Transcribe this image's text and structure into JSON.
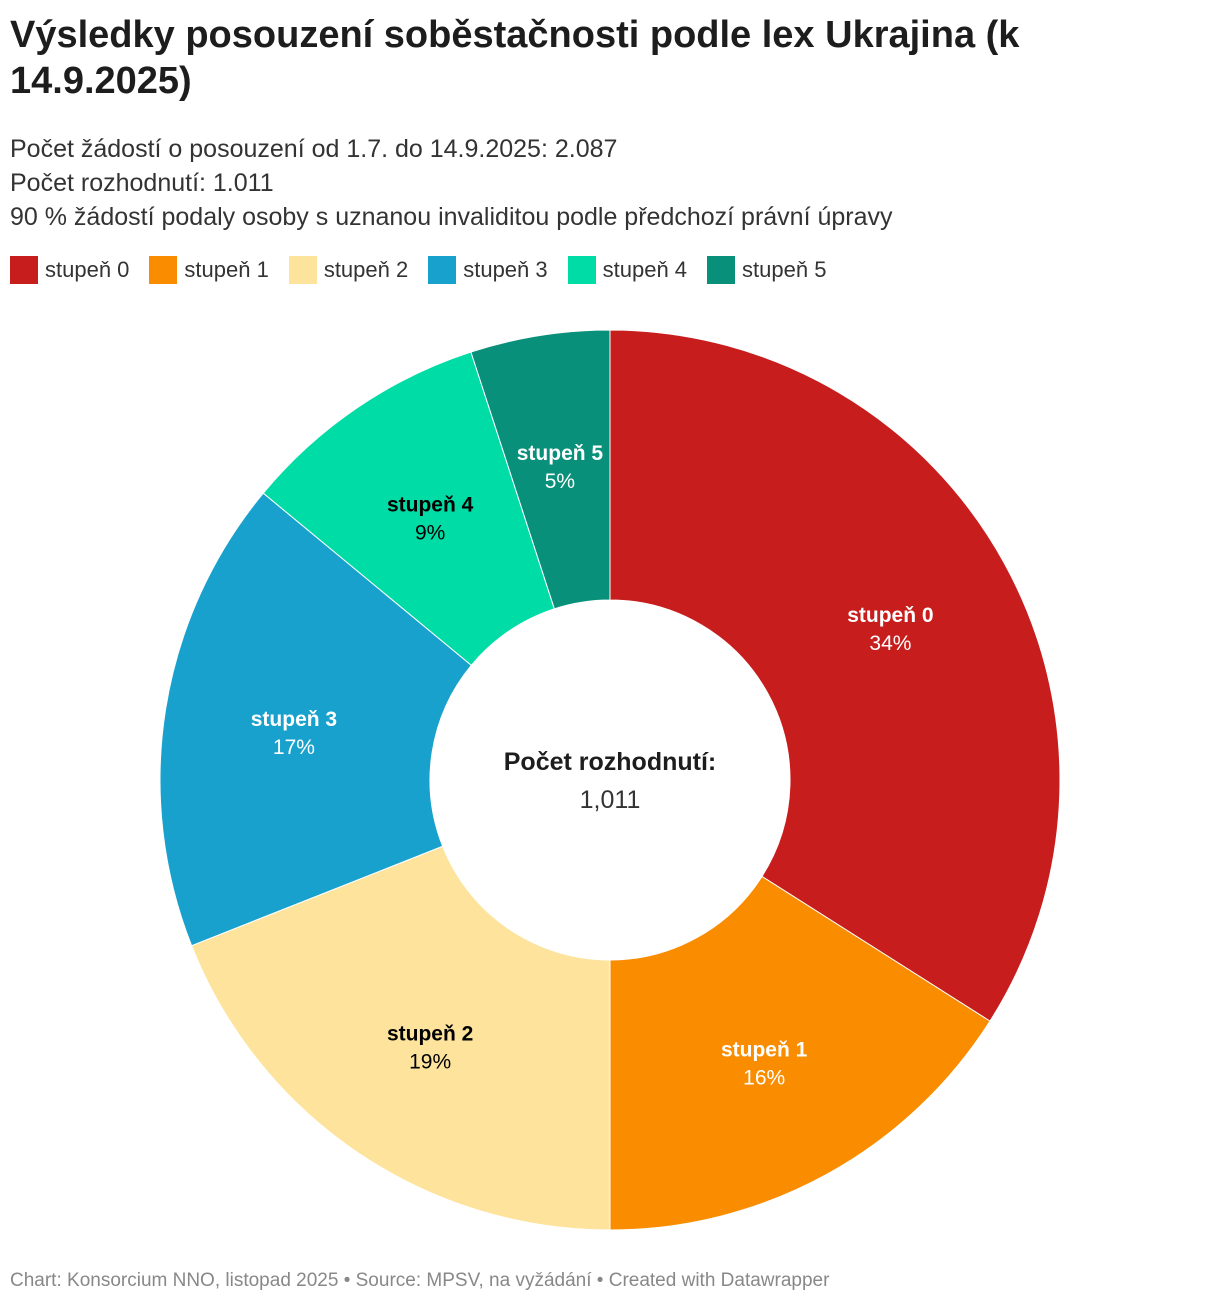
{
  "title": "Výsledky posouzení soběstačnosti podle lex Ukrajina (k 14.9.2025)",
  "description": [
    "Počet žádostí o posouzení od 1.7. do 14.9.2025: 2.087",
    "Počet rozhodnutí: 1.011",
    "90 % žádostí podaly osoby s uznanou invaliditou podle předchozí právní úpravy"
  ],
  "legend": [
    {
      "label": "stupeň 0",
      "color": "#c71e1d"
    },
    {
      "label": "stupeň 1",
      "color": "#fa8c00"
    },
    {
      "label": "stupeň 2",
      "color": "#fde39c"
    },
    {
      "label": "stupeň 3",
      "color": "#18a1cd"
    },
    {
      "label": "stupeň 4",
      "color": "#00dca6"
    },
    {
      "label": "stupeň 5",
      "color": "#09907a"
    }
  ],
  "chart_data": {
    "type": "pie",
    "donut": true,
    "categories": [
      "stupeň 0",
      "stupeň 1",
      "stupeň 2",
      "stupeň 3",
      "stupeň 4",
      "stupeň 5"
    ],
    "values": [
      34,
      16,
      19,
      17,
      9,
      5
    ],
    "value_labels": [
      "34%",
      "16%",
      "19%",
      "17%",
      "9%",
      "5%"
    ],
    "colors": [
      "#c71e1d",
      "#fa8c00",
      "#fde39c",
      "#18a1cd",
      "#00dca6",
      "#09907a"
    ],
    "label_colors": [
      "#ffffff",
      "#ffffff",
      "#000000",
      "#ffffff",
      "#000000",
      "#ffffff"
    ],
    "center_label": "Počet rozhodnutí:",
    "center_value": "1,011"
  },
  "footer": "Chart: Konsorcium NNO, listopad 2025 • Source: MPSV, na vyžádání • Created with Datawrapper"
}
